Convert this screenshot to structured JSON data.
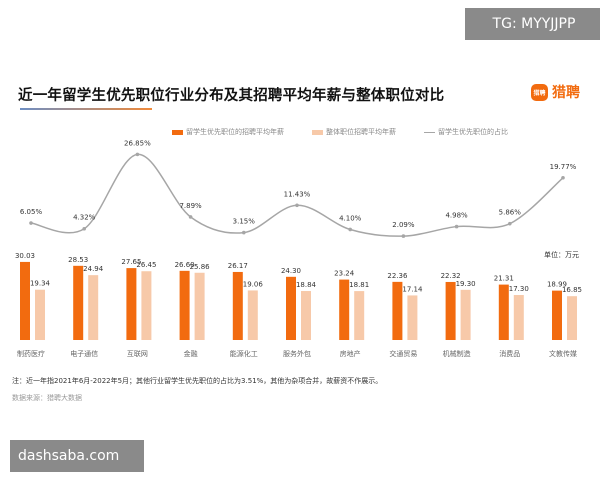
{
  "title": "近一年留学生优先职位行业分布及其招聘平均年薪与整体职位对比",
  "logo": {
    "icon_text": "猎聘",
    "text": "猎聘"
  },
  "watermarks": {
    "top": "TG: MYYJJPP",
    "bottom": "dashsaba.com"
  },
  "unit": "单位：万元",
  "note": "注：近一年指2021年6月-2022年5月；其他行业留学生优先职位的占比为3.51%，其他为杂项合并，故薪资不作展示。",
  "source": "数据来源：猎聘大数据",
  "chart_data": {
    "type": "bar+line",
    "categories": [
      "制药医疗",
      "电子通信",
      "互联网",
      "金融",
      "能源化工",
      "服务外包",
      "房地产",
      "交通贸易",
      "机械制造",
      "消费品",
      "文教传媒"
    ],
    "series": [
      {
        "name": "留学生优先职位的招聘平均年薪",
        "type": "bar",
        "color": "#f26b0f",
        "values": [
          30.03,
          28.53,
          27.65,
          26.6,
          26.17,
          24.3,
          23.24,
          22.36,
          22.32,
          21.31,
          18.99
        ]
      },
      {
        "name": "整体职位招聘平均年薪",
        "type": "bar",
        "color": "#f7c9a9",
        "values": [
          19.34,
          24.94,
          26.45,
          25.86,
          19.06,
          18.84,
          18.81,
          17.14,
          19.3,
          17.3,
          16.85
        ]
      },
      {
        "name": "留学生优先职位的占比",
        "type": "line",
        "color": "#a6a6a6",
        "unit": "%",
        "values": [
          6.05,
          4.32,
          26.85,
          7.89,
          3.15,
          11.43,
          4.1,
          2.09,
          4.98,
          5.86,
          19.77
        ]
      }
    ],
    "legend": "top"
  }
}
